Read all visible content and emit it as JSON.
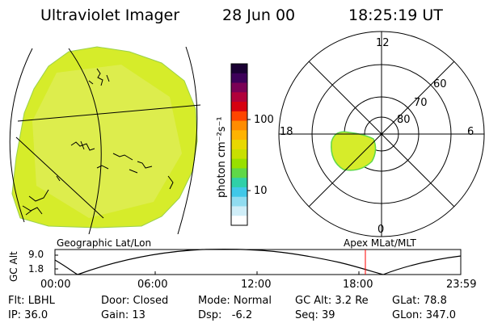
{
  "header": {
    "title": "Ultraviolet Imager",
    "date": "28 Jun 00",
    "time": "18:25:19 UT"
  },
  "colorbar": {
    "unit_label": "photon cm⁻²s⁻¹",
    "ticks": [
      "100",
      "10"
    ],
    "colors": [
      "#1a0033",
      "#3d0059",
      "#7a0055",
      "#b0003a",
      "#d60010",
      "#ff4500",
      "#ff8c00",
      "#ffb300",
      "#e8d800",
      "#c8e000",
      "#98e000",
      "#5fd848",
      "#2fd0a8",
      "#40c8e8",
      "#90dcf0",
      "#d0eef8",
      "#ffffff"
    ]
  },
  "polar_plot": {
    "mlt_labels": [
      "12",
      "18",
      "6",
      "0"
    ],
    "lat_labels": [
      "60",
      "70",
      "80"
    ]
  },
  "timeline": {
    "left_label": "Geographic Lat/Lon",
    "right_label": "Apex MLat/MLT",
    "y_axis_label": "GC Alt",
    "y_ticks": [
      "9.0",
      "1.8"
    ],
    "x_ticks": [
      "00:00",
      "06:00",
      "12:00",
      "18:00",
      "23:59"
    ]
  },
  "status": {
    "row1": [
      "Flt: LBHL",
      "Door: Closed",
      "Mode: Normal",
      "GC Alt: 3.2 Re",
      "GLat: 78.8"
    ],
    "row2": [
      "IP: 36.0",
      "Gain: 13",
      "Dsp:   -6.2",
      "Seq: 39",
      "GLon: 347.0"
    ]
  },
  "colors": {
    "aurora_fill": "#d6ec2a",
    "aurora_light": "#e8f27a",
    "marker": "#ff0000"
  }
}
